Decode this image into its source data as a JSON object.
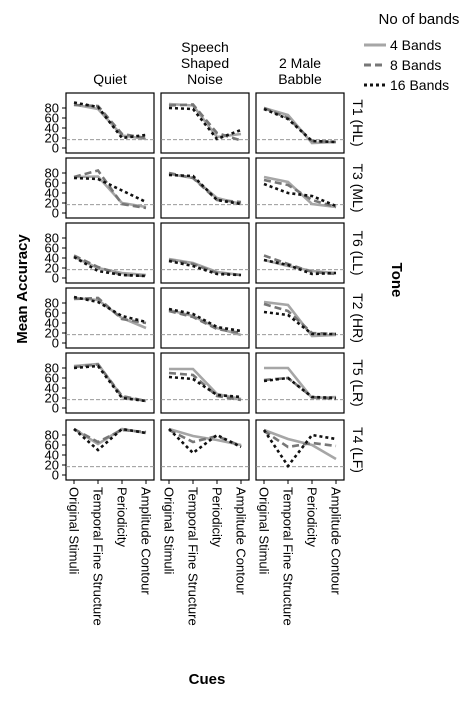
{
  "chart_data": {
    "type": "line",
    "facet_rows_label": "Tone",
    "facet_cols_label": "",
    "xlabel": "Cues",
    "ylabel": "Mean Accuracy",
    "ylim": [
      0,
      100
    ],
    "yticks": [
      0,
      20,
      40,
      60,
      80
    ],
    "reference_line": 16.7,
    "categories": [
      "Original Stimuli",
      "Temporal Fine Structure",
      "Periodicity",
      "Amplitude Contour"
    ],
    "columns": [
      {
        "label_lines": [
          "Quiet"
        ]
      },
      {
        "label_lines": [
          "Speech",
          "Shaped",
          "Noise"
        ]
      },
      {
        "label_lines": [
          "2 Male",
          "Babble"
        ]
      }
    ],
    "rows": [
      "T1 (HL)",
      "T3 (ML)",
      "T6 (LL)",
      "T2 (HR)",
      "T5 (LR)",
      "T4 (LF)"
    ],
    "legend": {
      "title": "No of bands",
      "entries": [
        {
          "name": "4 Bands",
          "color": "#a6a6a6",
          "dash": "solid"
        },
        {
          "name": "8 Bands",
          "color": "#777777",
          "dash": "dashed"
        },
        {
          "name": "16 Bands",
          "color": "#111111",
          "dash": "dotted"
        }
      ]
    },
    "panels": [
      [
        [
          [
            87,
            78,
            25,
            18
          ],
          [
            86,
            84,
            28,
            20
          ],
          [
            91,
            82,
            20,
            26
          ]
        ],
        [
          [
            88,
            85,
            22,
            28
          ],
          [
            85,
            87,
            30,
            15
          ],
          [
            80,
            78,
            18,
            36
          ]
        ],
        [
          [
            80,
            66,
            10,
            12
          ],
          [
            80,
            60,
            14,
            12
          ],
          [
            78,
            58,
            14,
            12
          ]
        ]
      ],
      [
        [
          [
            72,
            73,
            20,
            12
          ],
          [
            72,
            85,
            18,
            10
          ],
          [
            70,
            68,
            45,
            22
          ]
        ],
        [
          [
            78,
            70,
            30,
            18
          ],
          [
            80,
            70,
            26,
            22
          ],
          [
            76,
            74,
            26,
            18
          ]
        ],
        [
          [
            72,
            62,
            18,
            12
          ],
          [
            66,
            56,
            26,
            12
          ],
          [
            58,
            40,
            34,
            14
          ]
        ]
      ],
      [
        [
          [
            42,
            20,
            10,
            6
          ],
          [
            45,
            22,
            6,
            4
          ],
          [
            42,
            14,
            6,
            4
          ]
        ],
        [
          [
            38,
            30,
            12,
            6
          ],
          [
            36,
            28,
            10,
            6
          ],
          [
            34,
            24,
            8,
            6
          ]
        ],
        [
          [
            36,
            24,
            14,
            10
          ],
          [
            45,
            28,
            12,
            8
          ],
          [
            36,
            26,
            8,
            10
          ]
        ]
      ],
      [
        [
          [
            90,
            86,
            50,
            30
          ],
          [
            88,
            90,
            48,
            40
          ],
          [
            92,
            82,
            54,
            42
          ]
        ],
        [
          [
            66,
            54,
            30,
            16
          ],
          [
            64,
            52,
            28,
            20
          ],
          [
            68,
            58,
            32,
            24
          ]
        ],
        [
          [
            82,
            76,
            14,
            16
          ],
          [
            78,
            64,
            20,
            18
          ],
          [
            62,
            56,
            18,
            18
          ]
        ]
      ],
      [
        [
          [
            84,
            88,
            22,
            14
          ],
          [
            82,
            87,
            24,
            14
          ],
          [
            80,
            84,
            20,
            14
          ]
        ],
        [
          [
            78,
            78,
            28,
            18
          ],
          [
            70,
            66,
            24,
            16
          ],
          [
            62,
            58,
            26,
            22
          ]
        ],
        [
          [
            80,
            80,
            20,
            22
          ],
          [
            56,
            60,
            22,
            18
          ],
          [
            54,
            60,
            22,
            20
          ]
        ]
      ],
      [
        [
          [
            92,
            62,
            92,
            84
          ],
          [
            92,
            66,
            90,
            86
          ],
          [
            92,
            50,
            92,
            84
          ]
        ],
        [
          [
            92,
            78,
            70,
            60
          ],
          [
            90,
            66,
            78,
            58
          ],
          [
            92,
            44,
            80,
            56
          ]
        ],
        [
          [
            90,
            72,
            60,
            32
          ],
          [
            88,
            56,
            64,
            58
          ],
          [
            90,
            18,
            80,
            72
          ]
        ]
      ]
    ]
  }
}
